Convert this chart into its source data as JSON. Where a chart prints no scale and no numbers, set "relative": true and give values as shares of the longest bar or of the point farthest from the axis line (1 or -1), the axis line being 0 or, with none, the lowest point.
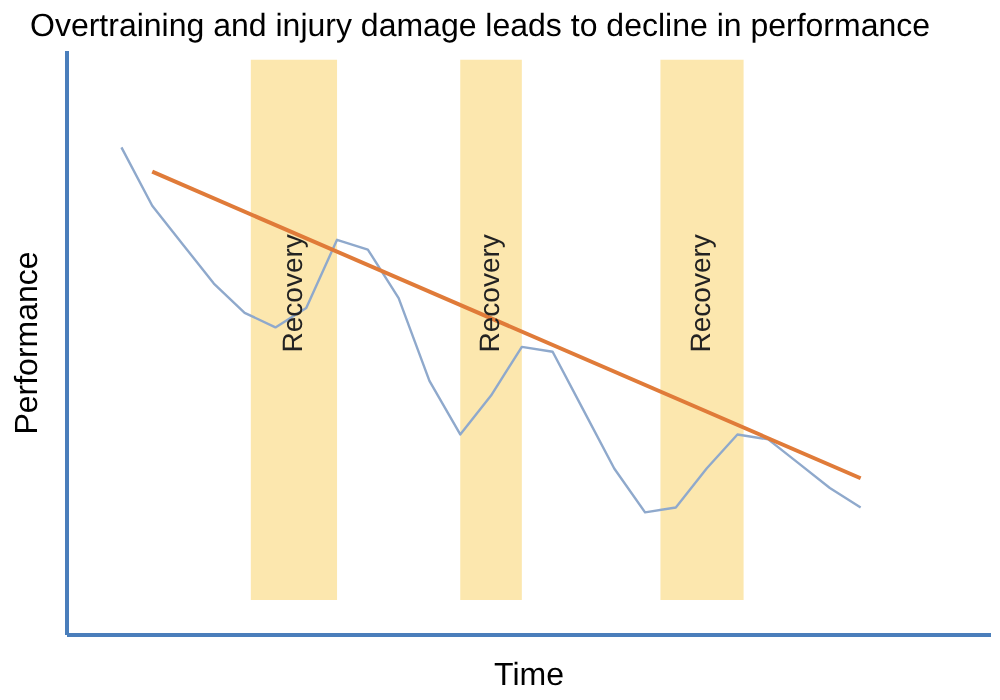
{
  "chart_data": {
    "type": "line",
    "relative": true,
    "title": "Overtraining and injury damage leads to decline in performance",
    "xlabel": "Time",
    "ylabel": "Performance",
    "tick_labels": false,
    "grid": false,
    "marker": "none",
    "line_style": "solid",
    "categories": [
      null,
      null,
      null,
      null,
      null,
      null,
      null,
      null,
      null,
      null,
      null,
      null,
      null,
      null,
      null,
      null,
      null,
      null,
      null,
      null,
      null,
      null,
      null,
      null,
      null
    ],
    "series": [
      {
        "color": "#8fa9cc",
        "values": [
          1.0,
          0.88,
          0.8,
          0.72,
          0.66,
          0.63,
          0.67,
          0.81,
          0.79,
          0.69,
          0.52,
          0.41,
          0.49,
          0.59,
          0.58,
          0.46,
          0.34,
          0.25,
          0.26,
          0.34,
          0.41,
          0.4,
          0.35,
          0.3,
          0.26
        ]
      },
      {
        "color": "#e07b39",
        "values": [
          null,
          0.95,
          null,
          null,
          null,
          null,
          null,
          null,
          null,
          null,
          null,
          null,
          null,
          null,
          null,
          null,
          null,
          null,
          null,
          null,
          null,
          null,
          null,
          null,
          0.32
        ]
      }
    ],
    "annotations": [
      "Recovery",
      "Recovery",
      "Recovery"
    ]
  }
}
